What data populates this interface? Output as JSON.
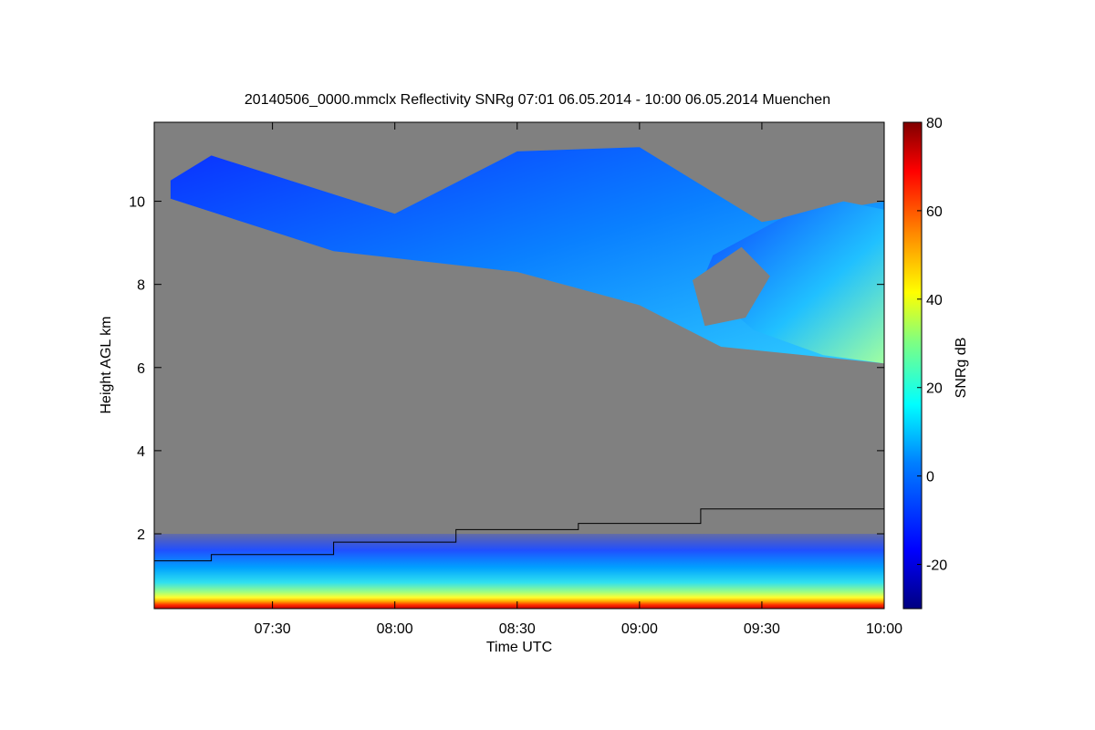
{
  "chart_data": {
    "type": "heatmap",
    "title": "20140506_0000.mmclx Reflectivity SNRg   07:01 06.05.2014 - 10:00 06.05.2014 Muenchen",
    "xlabel": "Time UTC",
    "ylabel": "Height AGL km",
    "colorbar_label": "SNRg dB",
    "x_range": [
      "07:01",
      "10:00"
    ],
    "x_ticks": [
      "07:30",
      "08:00",
      "08:30",
      "09:00",
      "09:30",
      "10:00"
    ],
    "ylim": [
      0.2,
      11.9
    ],
    "y_ticks": [
      2,
      4,
      6,
      8,
      10
    ],
    "colorbar_range": [
      -30,
      80
    ],
    "colorbar_ticks": [
      -20,
      0,
      20,
      40,
      60,
      80
    ],
    "background_color": "#808080",
    "boundary_layer_line": [
      {
        "start": "07:01",
        "end": "07:15",
        "height_km": 1.35
      },
      {
        "start": "07:15",
        "end": "07:45",
        "height_km": 1.5
      },
      {
        "start": "07:45",
        "end": "08:15",
        "height_km": 1.8
      },
      {
        "start": "08:15",
        "end": "08:45",
        "height_km": 2.1
      },
      {
        "start": "08:45",
        "end": "09:15",
        "height_km": 2.25
      },
      {
        "start": "09:15",
        "end": "10:00",
        "height_km": 2.6
      }
    ],
    "cloud_layer": {
      "top_km": [
        {
          "time": "07:05",
          "height_km": 10.5
        },
        {
          "time": "07:15",
          "height_km": 11.1
        },
        {
          "time": "08:00",
          "height_km": 9.7
        },
        {
          "time": "08:30",
          "height_km": 11.2
        },
        {
          "time": "09:00",
          "height_km": 11.3
        },
        {
          "time": "09:30",
          "height_km": 9.5
        },
        {
          "time": "10:00",
          "height_km": 10.0
        }
      ],
      "base_km": [
        {
          "time": "07:45",
          "height_km": 8.8
        },
        {
          "time": "08:30",
          "height_km": 8.3
        },
        {
          "time": "09:00",
          "height_km": 7.5
        },
        {
          "time": "09:20",
          "height_km": 6.5
        },
        {
          "time": "10:00",
          "height_km": 6.1
        }
      ],
      "snr_db_range": [
        -20,
        20
      ]
    },
    "boundary_layer_echo": {
      "surface_snr_db": 60,
      "top_km": 2.0,
      "snr_db_range": [
        -20,
        60
      ]
    }
  }
}
